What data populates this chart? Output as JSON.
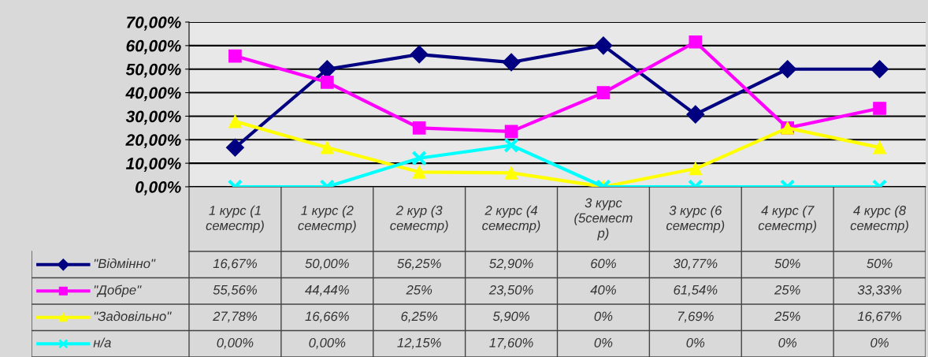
{
  "chart_data": {
    "type": "line",
    "categories": [
      "1 курс (1\nсеместр)",
      "1 курс (2\nсеместр)",
      "2 кур (3\nсеместр)",
      "2 курс (4\nсеместр)",
      "3 курс\n(5семест\nр)",
      "3 курс (6\nсеместр)",
      "4 курс (7\nсеместр)",
      "4 курс (8\nсеместр)"
    ],
    "series": [
      {
        "name": "\"Відмінно\"",
        "color": "#000080",
        "marker": "diamond",
        "values": [
          16.67,
          50.0,
          56.25,
          52.9,
          60,
          30.77,
          50,
          50
        ],
        "value_labels": [
          "16,67%",
          "50,00%",
          "56,25%",
          "52,90%",
          "60%",
          "30,77%",
          "50%",
          "50%"
        ]
      },
      {
        "name": "\"Добре\"",
        "color": "#ff00ff",
        "marker": "square",
        "values": [
          55.56,
          44.44,
          25,
          23.5,
          40,
          61.54,
          25,
          33.33
        ],
        "value_labels": [
          "55,56%",
          "44,44%",
          "25%",
          "23,50%",
          "40%",
          "61,54%",
          "25%",
          "33,33%"
        ]
      },
      {
        "name": "\"Задовільно\"",
        "color": "#ffff00",
        "marker": "triangle",
        "values": [
          27.78,
          16.66,
          6.25,
          5.9,
          0,
          7.69,
          25,
          16.67
        ],
        "value_labels": [
          "27,78%",
          "16,66%",
          "6,25%",
          "5,90%",
          "0%",
          "7,69%",
          "25%",
          "16,67%"
        ]
      },
      {
        "name": "н/а",
        "color": "#00ffff",
        "marker": "cross",
        "values": [
          0,
          0,
          12.15,
          17.6,
          0,
          0,
          0,
          0
        ],
        "value_labels": [
          "0,00%",
          "0,00%",
          "12,15%",
          "17,60%",
          "0%",
          "0%",
          "0%",
          "0%"
        ]
      }
    ],
    "ylim": [
      0,
      70
    ],
    "yticks": [
      {
        "value": 0,
        "label": "0,00%"
      },
      {
        "value": 10,
        "label": "10,00%"
      },
      {
        "value": 20,
        "label": "20,00%"
      },
      {
        "value": 30,
        "label": "30,00%"
      },
      {
        "value": 40,
        "label": "40,00%"
      },
      {
        "value": 50,
        "label": "50,00%"
      },
      {
        "value": 60,
        "label": "60,00%"
      },
      {
        "value": 70,
        "label": "70,00%"
      }
    ],
    "grid": "y",
    "legend": "bottom",
    "line_style": "solid"
  }
}
